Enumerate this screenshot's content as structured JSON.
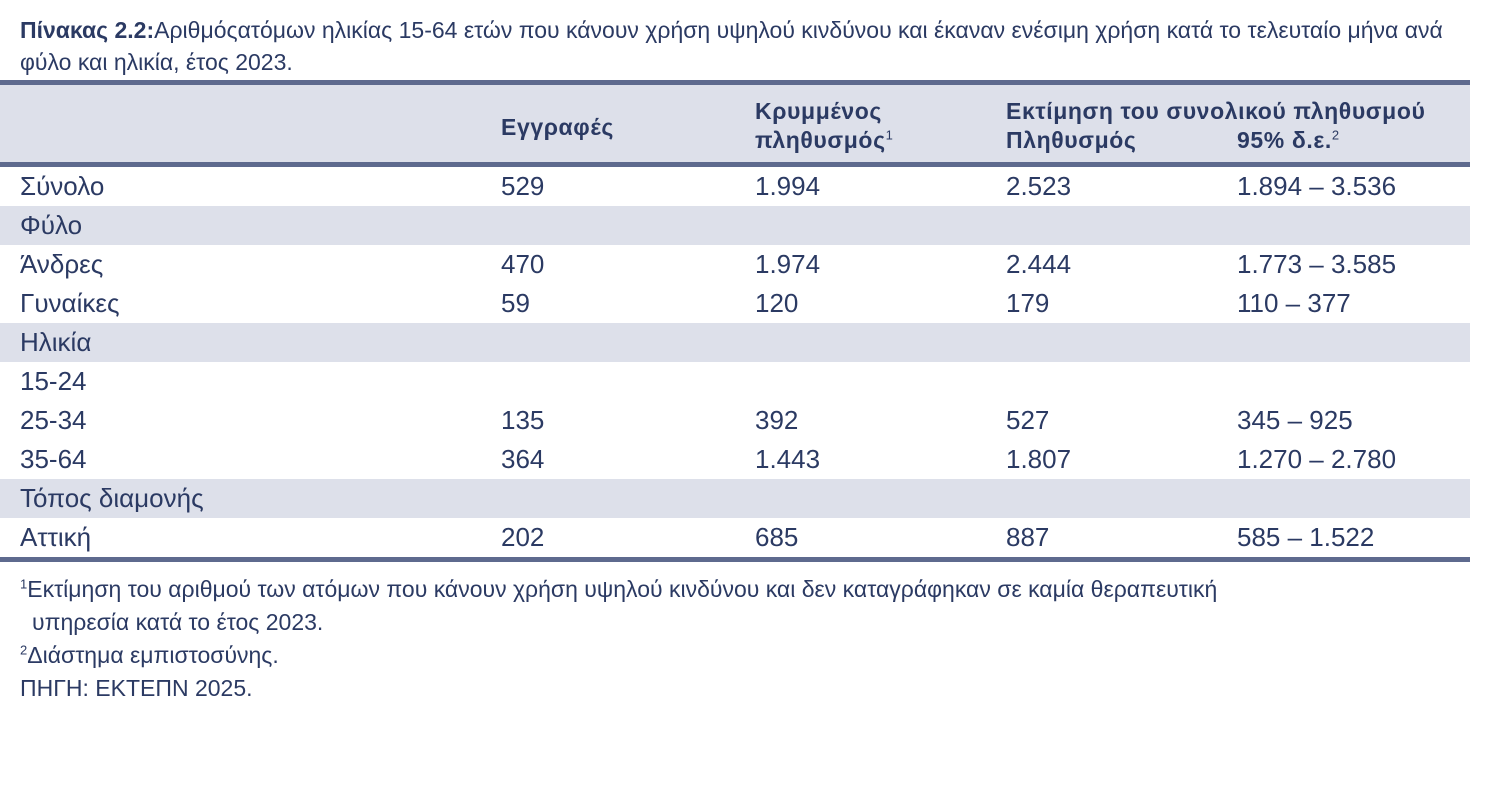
{
  "caption": {
    "label": "Πίνακας 2.2:",
    "text": "Αριθμόςατόμων ηλικίας 15-64 ετών που κάνουν χρήση υψηλού κινδύνου και έκαναν ενέσιμη χρήση κατά το τελευταίο μήνα ανά φύλο και ηλικία, έτος 2023."
  },
  "header": {
    "col_registrations": "Εγγραφές",
    "col_hidden_line1": "Κρυμμένος",
    "col_hidden_line2": "πληθυσμός",
    "col_hidden_sup": "1",
    "col_estimate_group": "Εκτίμηση του συνολικού πληθυσμού",
    "col_population": "Πληθυσμός",
    "col_ci": "95% δ.ε.",
    "col_ci_sup": "2"
  },
  "rows": [
    {
      "label": "Σύνολο",
      "reg": "529",
      "hidden": "1.994",
      "pop": "2.523",
      "ci": "1.894 – 3.536"
    },
    {
      "label": "Φύλο"
    },
    {
      "label": "Άνδρες",
      "reg": "470",
      "hidden": "1.974",
      "pop": "2.444",
      "ci": "1.773 – 3.585"
    },
    {
      "label": "Γυναίκες",
      "reg": "59",
      "hidden": "120",
      "pop": "179",
      "ci": "110 – 377"
    },
    {
      "label": "Ηλικία"
    },
    {
      "label": "15-24"
    },
    {
      "label": "25-34",
      "reg": "135",
      "hidden": "392",
      "pop": "527",
      "ci": "345 – 925"
    },
    {
      "label": "35-64",
      "reg": "364",
      "hidden": "1.443",
      "pop": "1.807",
      "ci": "1.270 – 2.780"
    },
    {
      "label": "Τόπος διαμονής"
    },
    {
      "label": "Αττική",
      "reg": "202",
      "hidden": "685",
      "pop": "887",
      "ci": "585 – 1.522"
    }
  ],
  "footnotes": {
    "note1_sup": "1",
    "note1_line1": "Εκτίμηση του αριθμού των ατόμων που κάνουν χρήση υψηλού κινδύνου και δεν καταγράφηκαν σε καμία  θεραπευτική",
    "note1_line2": "υπηρεσία κατά το έτος 2023.",
    "note2_sup": "2",
    "note2": "Διάστημα εμπιστοσύνης.",
    "source": "ΠΗΓΗ: ΕΚΤΕΠΝ 2025."
  }
}
